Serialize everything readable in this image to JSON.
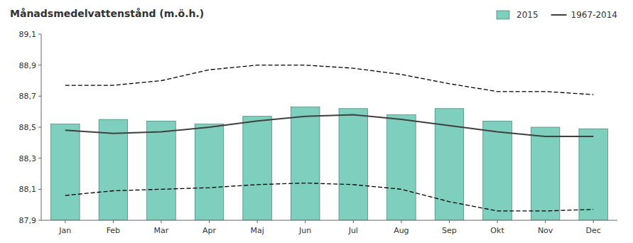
{
  "chart_data": {
    "type": "bar",
    "title": "Månadsmedelvattenstånd (m.ö.h.)",
    "categories": [
      "Jan",
      "Feb",
      "Mar",
      "Apr",
      "Maj",
      "Jun",
      "Jul",
      "Aug",
      "Sep",
      "Okt",
      "Nov",
      "Dec"
    ],
    "series": [
      {
        "name": "2015",
        "type": "bar",
        "color": "#7fcfbf",
        "values": [
          88.52,
          88.55,
          88.54,
          88.52,
          88.57,
          88.63,
          88.62,
          88.58,
          88.62,
          88.54,
          88.5,
          88.49
        ]
      },
      {
        "name": "1967-2014",
        "type": "line",
        "color": "#404040",
        "line_style": "solid",
        "values": [
          88.48,
          88.46,
          88.47,
          88.5,
          88.54,
          88.57,
          88.58,
          88.55,
          88.51,
          88.47,
          88.44,
          88.44
        ]
      },
      {
        "type": "line",
        "color": "#000000",
        "line_style": "dashed",
        "values": [
          88.77,
          88.77,
          88.8,
          88.87,
          88.9,
          88.9,
          88.88,
          88.84,
          88.78,
          88.73,
          88.73,
          88.71
        ]
      },
      {
        "type": "line",
        "color": "#000000",
        "line_style": "dashed",
        "values": [
          88.06,
          88.09,
          88.1,
          88.11,
          88.13,
          88.14,
          88.13,
          88.1,
          88.02,
          87.96,
          87.96,
          87.97
        ]
      }
    ],
    "ylim": [
      87.9,
      89.1
    ],
    "yticks": [
      {
        "value": 87.9,
        "label": "87,9"
      },
      {
        "value": 88.1,
        "label": "88,1"
      },
      {
        "value": 88.3,
        "label": "88,3"
      },
      {
        "value": 88.5,
        "label": "88,5"
      },
      {
        "value": 88.7,
        "label": "88,7"
      },
      {
        "value": 88.9,
        "label": "88,9"
      },
      {
        "value": 89.1,
        "label": "89,1"
      }
    ],
    "grid": false,
    "legend": "upper right"
  }
}
